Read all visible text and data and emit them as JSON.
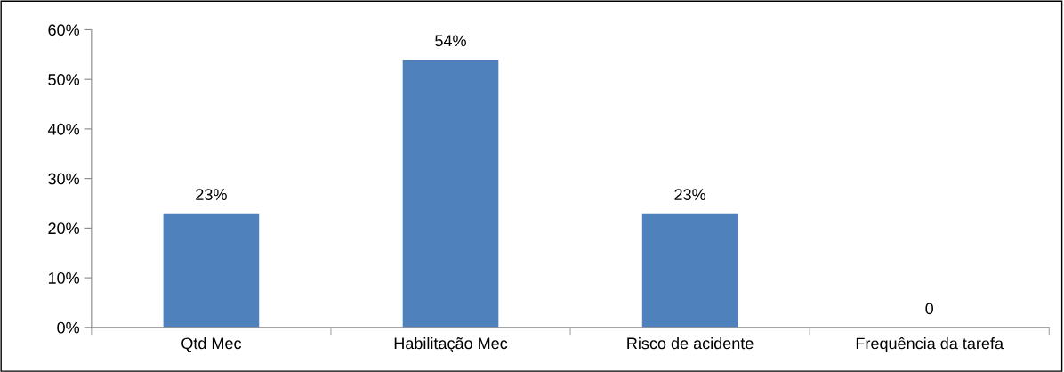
{
  "chart_data": {
    "type": "bar",
    "categories": [
      "Qtd Mec",
      "Habilitação Mec",
      "Risco de acidente",
      "Frequência da tarefa"
    ],
    "values": [
      23,
      54,
      23,
      0
    ],
    "value_labels": [
      "23%",
      "54%",
      "23%",
      "0"
    ],
    "color": "#4f81bd",
    "ylim": [
      0,
      60
    ],
    "yticks": [
      {
        "value": 0,
        "label": "0%"
      },
      {
        "value": 10,
        "label": "10%"
      },
      {
        "value": 20,
        "label": "20%"
      },
      {
        "value": 30,
        "label": "30%"
      },
      {
        "value": 40,
        "label": "40%"
      },
      {
        "value": 50,
        "label": "50%"
      },
      {
        "value": 60,
        "label": "60%"
      }
    ],
    "grid": false,
    "legend": false
  }
}
